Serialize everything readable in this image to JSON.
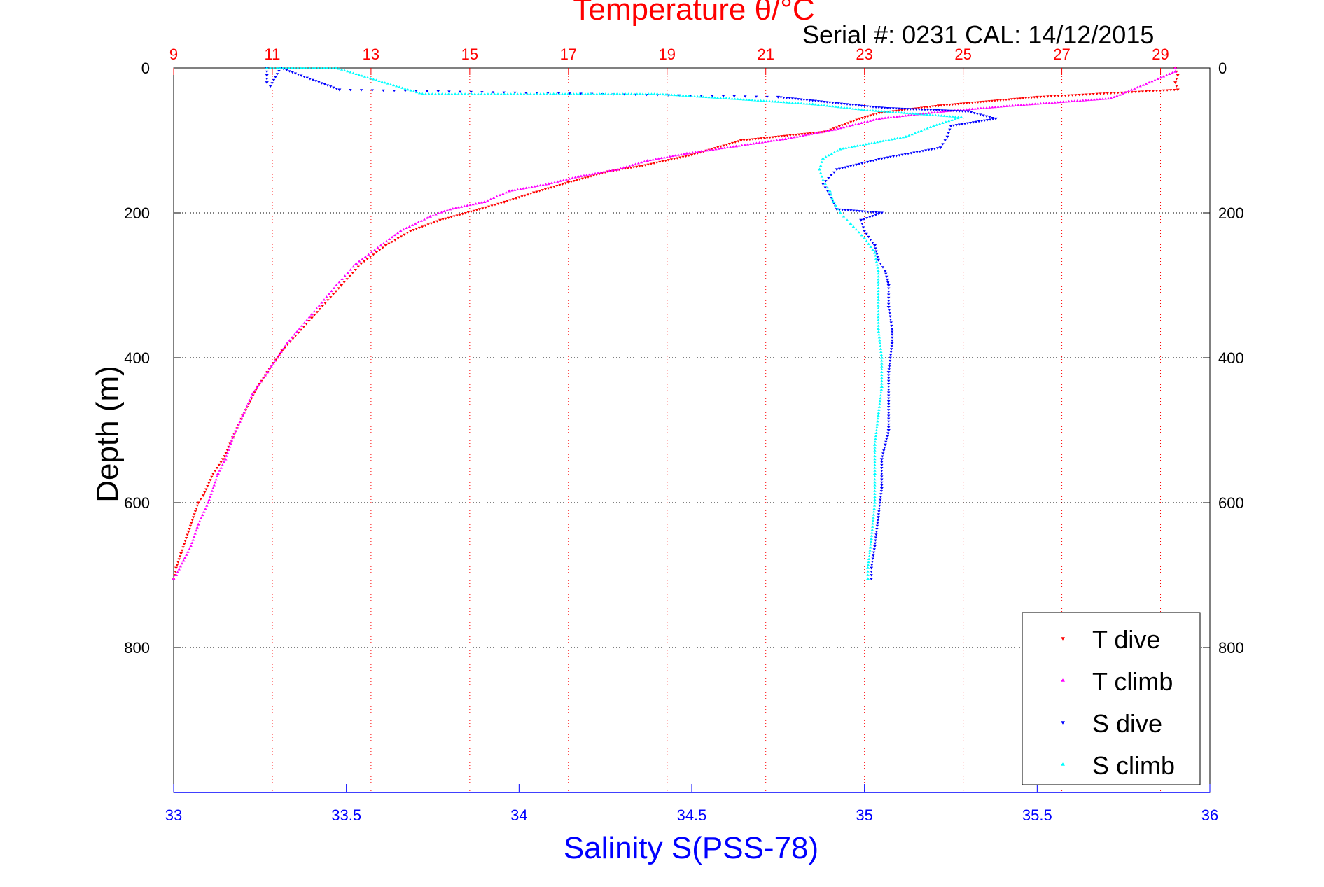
{
  "chart_data": {
    "type": "scatter",
    "title": "Temperature θ/°C",
    "subtitle": "Serial #: 0231  CAL: 14/12/2015",
    "xlabel": "Salinity S(PSS-78)",
    "ylabel": "Depth (m)",
    "x_salinity": {
      "range": [
        33,
        36
      ],
      "ticks": [
        "33",
        "33.5",
        "34",
        "34.5",
        "35",
        "35.5",
        "36"
      ]
    },
    "x_temperature": {
      "range": [
        9,
        30
      ],
      "ticks": [
        "9",
        "11",
        "13",
        "15",
        "17",
        "19",
        "21",
        "23",
        "25",
        "27",
        "29"
      ]
    },
    "y_depth": {
      "range": [
        0,
        1000
      ],
      "reversed": true,
      "ticks": [
        "0",
        "200",
        "400",
        "600",
        "800"
      ]
    },
    "grid": true,
    "legend_position": "bottom-right",
    "colors": {
      "t_dive": "#ff0000",
      "t_climb": "#ff00ff",
      "s_dive": "#0000ff",
      "s_climb": "#00ffff",
      "temp_axis": "#ff0000",
      "sal_axis": "#0000ff"
    },
    "series": [
      {
        "name": "T dive",
        "axis": "temperature",
        "marker": "triangle-down",
        "points": [
          [
            29.3,
            0
          ],
          [
            29.35,
            10
          ],
          [
            29.3,
            20
          ],
          [
            29.35,
            30
          ],
          [
            26.5,
            40
          ],
          [
            24.5,
            52
          ],
          [
            23.3,
            62
          ],
          [
            22.9,
            70
          ],
          [
            22.2,
            88
          ],
          [
            20.5,
            100
          ],
          [
            19.5,
            120
          ],
          [
            18.5,
            135
          ],
          [
            17.8,
            143
          ],
          [
            17.0,
            158
          ],
          [
            16.3,
            172
          ],
          [
            15.7,
            185
          ],
          [
            15.2,
            195
          ],
          [
            14.4,
            210
          ],
          [
            13.8,
            225
          ],
          [
            13.3,
            245
          ],
          [
            12.8,
            270
          ],
          [
            12.4,
            300
          ],
          [
            11.8,
            345
          ],
          [
            11.2,
            390
          ],
          [
            10.9,
            420
          ],
          [
            10.7,
            440
          ],
          [
            10.4,
            480
          ],
          [
            10.2,
            510
          ],
          [
            10.0,
            540
          ],
          [
            9.8,
            560
          ],
          [
            9.6,
            590
          ],
          [
            9.5,
            600
          ],
          [
            9.3,
            640
          ],
          [
            9.15,
            670
          ],
          [
            9.05,
            690
          ],
          [
            9.0,
            705
          ]
        ]
      },
      {
        "name": "T climb",
        "axis": "temperature",
        "marker": "triangle-up",
        "points": [
          [
            29.3,
            0
          ],
          [
            29.3,
            5
          ],
          [
            28.0,
            42
          ],
          [
            26.0,
            52
          ],
          [
            24.6,
            60
          ],
          [
            23.3,
            70
          ],
          [
            22.4,
            85
          ],
          [
            21.4,
            98
          ],
          [
            20.4,
            108
          ],
          [
            19.4,
            118
          ],
          [
            18.6,
            128
          ],
          [
            18.0,
            140
          ],
          [
            17.2,
            150
          ],
          [
            16.6,
            160
          ],
          [
            15.8,
            170
          ],
          [
            15.3,
            185
          ],
          [
            14.6,
            195
          ],
          [
            14.2,
            205
          ],
          [
            13.6,
            225
          ],
          [
            13.2,
            245
          ],
          [
            12.7,
            270
          ],
          [
            12.3,
            300
          ],
          [
            11.8,
            340
          ],
          [
            11.3,
            380
          ],
          [
            10.9,
            420
          ],
          [
            10.6,
            450
          ],
          [
            10.4,
            480
          ],
          [
            10.2,
            510
          ],
          [
            10.05,
            540
          ],
          [
            9.9,
            560
          ],
          [
            9.7,
            600
          ],
          [
            9.5,
            630
          ],
          [
            9.35,
            660
          ],
          [
            9.2,
            680
          ],
          [
            9.05,
            700
          ],
          [
            9.0,
            705
          ]
        ]
      },
      {
        "name": "S dive",
        "axis": "salinity",
        "marker": "triangle-down",
        "points": [
          [
            33.27,
            0
          ],
          [
            33.27,
            10
          ],
          [
            33.27,
            20
          ],
          [
            33.28,
            25
          ],
          [
            33.31,
            0
          ],
          [
            33.48,
            30
          ],
          [
            34.75,
            40
          ],
          [
            35.05,
            55
          ],
          [
            35.3,
            60
          ],
          [
            35.38,
            70
          ],
          [
            35.25,
            80
          ],
          [
            35.24,
            95
          ],
          [
            35.22,
            110
          ],
          [
            35.05,
            125
          ],
          [
            34.92,
            140
          ],
          [
            34.88,
            160
          ],
          [
            34.9,
            175
          ],
          [
            34.92,
            195
          ],
          [
            35.05,
            200
          ],
          [
            34.99,
            210
          ],
          [
            35.0,
            225
          ],
          [
            35.03,
            245
          ],
          [
            35.04,
            265
          ],
          [
            35.06,
            280
          ],
          [
            35.07,
            300
          ],
          [
            35.07,
            330
          ],
          [
            35.08,
            360
          ],
          [
            35.08,
            380
          ],
          [
            35.07,
            420
          ],
          [
            35.07,
            460
          ],
          [
            35.07,
            500
          ],
          [
            35.06,
            520
          ],
          [
            35.05,
            540
          ],
          [
            35.05,
            580
          ],
          [
            35.04,
            620
          ],
          [
            35.03,
            660
          ],
          [
            35.02,
            690
          ],
          [
            35.02,
            705
          ]
        ]
      },
      {
        "name": "S climb",
        "axis": "salinity",
        "marker": "triangle-up",
        "points": [
          [
            33.27,
            0
          ],
          [
            33.3,
            0
          ],
          [
            33.47,
            0
          ],
          [
            33.72,
            36
          ],
          [
            34.1,
            36
          ],
          [
            34.4,
            36
          ],
          [
            34.6,
            42
          ],
          [
            34.85,
            50
          ],
          [
            35.0,
            58
          ],
          [
            35.28,
            68
          ],
          [
            35.2,
            80
          ],
          [
            35.12,
            95
          ],
          [
            34.93,
            112
          ],
          [
            34.88,
            125
          ],
          [
            34.87,
            140
          ],
          [
            34.88,
            155
          ],
          [
            34.9,
            170
          ],
          [
            34.91,
            185
          ],
          [
            34.93,
            200
          ],
          [
            34.96,
            215
          ],
          [
            35.0,
            235
          ],
          [
            35.03,
            255
          ],
          [
            35.04,
            280
          ],
          [
            35.04,
            320
          ],
          [
            35.04,
            360
          ],
          [
            35.05,
            400
          ],
          [
            35.05,
            440
          ],
          [
            35.04,
            480
          ],
          [
            35.03,
            520
          ],
          [
            35.03,
            560
          ],
          [
            35.03,
            600
          ],
          [
            35.02,
            650
          ],
          [
            35.01,
            690
          ],
          [
            35.01,
            705
          ]
        ]
      }
    ]
  }
}
